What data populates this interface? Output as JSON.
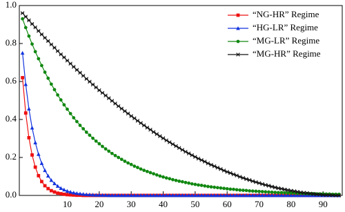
{
  "chart_data": {
    "type": "line",
    "x": [
      -4,
      -3,
      -2,
      -1,
      0,
      1,
      2,
      3,
      4,
      5,
      6,
      7,
      8,
      9,
      10,
      11,
      12,
      13,
      14,
      15,
      16,
      17,
      18,
      19,
      20,
      21,
      22,
      23,
      24,
      25,
      26,
      27,
      28,
      29,
      30,
      31,
      32,
      33,
      34,
      35,
      36,
      37,
      38,
      39,
      40,
      41,
      42,
      43,
      44,
      45,
      46,
      47,
      48,
      49,
      50,
      51,
      52,
      53,
      54,
      55,
      56,
      57,
      58,
      59,
      60,
      61,
      62,
      63,
      64,
      65,
      66,
      67,
      68,
      69,
      70,
      71,
      72,
      73,
      74,
      75,
      76,
      77,
      78,
      79,
      80,
      81,
      82,
      83,
      84,
      85,
      86,
      87,
      88,
      89,
      90,
      91,
      92,
      93,
      94,
      95
    ],
    "series": [
      {
        "name": "“NG-HR” Regime",
        "color": "#ee1111",
        "marker": "square",
        "values": [
          0.62,
          0.434,
          0.304,
          0.213,
          0.149,
          0.104,
          0.073,
          0.051,
          0.036,
          0.025,
          0.018,
          0.012,
          0.009,
          0.006,
          0.004,
          0.003,
          0.002,
          0.001,
          0.001,
          0,
          0,
          0,
          0,
          0,
          0,
          0,
          0,
          0,
          0,
          0,
          0,
          0,
          0,
          0,
          0,
          0,
          0,
          0,
          0,
          0,
          0,
          0,
          0,
          0,
          0,
          0,
          0,
          0,
          0,
          0,
          0,
          0,
          0,
          0,
          0,
          0,
          0,
          0,
          0,
          0,
          0,
          0,
          0,
          0,
          0,
          0,
          0,
          0,
          0,
          0,
          0,
          0,
          0,
          0,
          0,
          0,
          0,
          0,
          0,
          0,
          0,
          0,
          0,
          0,
          0,
          0,
          0,
          0,
          0,
          0,
          0,
          0,
          0,
          0,
          0,
          0,
          0,
          0,
          0,
          0
        ]
      },
      {
        "name": "“HG-LR” Regime",
        "color": "#1133dd",
        "marker": "triangle",
        "values": [
          0.75,
          0.585,
          0.456,
          0.356,
          0.278,
          0.217,
          0.169,
          0.132,
          0.103,
          0.08,
          0.063,
          0.049,
          0.038,
          0.03,
          0.023,
          0.018,
          0.014,
          0.011,
          0.009,
          0.007,
          0.005,
          0.004,
          0.003,
          0.002,
          0.002,
          0.001,
          0.001,
          0,
          0,
          0,
          0,
          0,
          0,
          0,
          0,
          0,
          0,
          0,
          0,
          0,
          0,
          0,
          0,
          0,
          0,
          0,
          0,
          0,
          0,
          0,
          0,
          0,
          0,
          0,
          0,
          0,
          0,
          0,
          0,
          0,
          0,
          0,
          0,
          0,
          0,
          0,
          0,
          0,
          0,
          0,
          0,
          0,
          0,
          0,
          0,
          0,
          0,
          0,
          0,
          0,
          0,
          0,
          0,
          0,
          0,
          0,
          0,
          0,
          0,
          0,
          0,
          0,
          0,
          0,
          0,
          0,
          0,
          0,
          0,
          0
        ]
      },
      {
        "name": "“MG-LR” Regime",
        "color": "#118811",
        "marker": "circle",
        "values": [
          0.93,
          0.884,
          0.839,
          0.797,
          0.757,
          0.72,
          0.684,
          0.649,
          0.617,
          0.586,
          0.557,
          0.529,
          0.503,
          0.477,
          0.454,
          0.431,
          0.409,
          0.389,
          0.369,
          0.351,
          0.333,
          0.317,
          0.301,
          0.286,
          0.272,
          0.258,
          0.245,
          0.233,
          0.221,
          0.21,
          0.2,
          0.19,
          0.18,
          0.171,
          0.163,
          0.154,
          0.147,
          0.139,
          0.132,
          0.126,
          0.12,
          0.114,
          0.108,
          0.102,
          0.097,
          0.092,
          0.088,
          0.083,
          0.079,
          0.075,
          0.072,
          0.068,
          0.065,
          0.061,
          0.058,
          0.055,
          0.053,
          0.05,
          0.047,
          0.045,
          0.043,
          0.041,
          0.039,
          0.037,
          0.035,
          0.033,
          0.032,
          0.03,
          0.028,
          0.027,
          0.026,
          0.024,
          0.023,
          0.022,
          0.021,
          0.02,
          0.019,
          0.018,
          0.017,
          0.016,
          0.015,
          0.015,
          0.014,
          0.013,
          0.013,
          0.012,
          0.011,
          0.011,
          0.01,
          0.01,
          0.009,
          0.009,
          0.008,
          0.008,
          0.008,
          0.007,
          0.007,
          0.006,
          0.006,
          0.006
        ]
      },
      {
        "name": "“MG-HR” Regime",
        "color": "#111111",
        "marker": "star",
        "values": [
          0.96,
          0.941,
          0.922,
          0.903,
          0.885,
          0.866,
          0.848,
          0.83,
          0.813,
          0.795,
          0.778,
          0.76,
          0.743,
          0.727,
          0.71,
          0.694,
          0.677,
          0.661,
          0.646,
          0.63,
          0.614,
          0.599,
          0.584,
          0.569,
          0.554,
          0.54,
          0.526,
          0.512,
          0.498,
          0.484,
          0.47,
          0.457,
          0.444,
          0.431,
          0.418,
          0.406,
          0.393,
          0.381,
          0.369,
          0.357,
          0.346,
          0.334,
          0.323,
          0.312,
          0.301,
          0.29,
          0.28,
          0.27,
          0.26,
          0.25,
          0.24,
          0.23,
          0.221,
          0.212,
          0.203,
          0.194,
          0.186,
          0.178,
          0.169,
          0.161,
          0.154,
          0.146,
          0.139,
          0.131,
          0.124,
          0.118,
          0.111,
          0.105,
          0.098,
          0.092,
          0.086,
          0.081,
          0.075,
          0.07,
          0.065,
          0.06,
          0.055,
          0.051,
          0.046,
          0.042,
          0.038,
          0.035,
          0.031,
          0.028,
          0.025,
          0.022,
          0.019,
          0.016,
          0.014,
          0.012,
          0.01,
          0.008,
          0.006,
          0.005,
          0.003,
          0.002,
          0.002,
          0.001,
          0.0,
          0.0
        ]
      }
    ],
    "xlim": [
      -5,
      96
    ],
    "xticks": [
      10,
      20,
      30,
      40,
      50,
      60,
      70,
      80,
      90
    ],
    "ylim": [
      0,
      1
    ],
    "yticks": [
      {
        "value": 0,
        "label": "0.0"
      },
      0.2,
      0.4,
      0.6,
      0.8,
      {
        "value": 1,
        "label": "1.0"
      }
    ],
    "legend": "top-right"
  }
}
